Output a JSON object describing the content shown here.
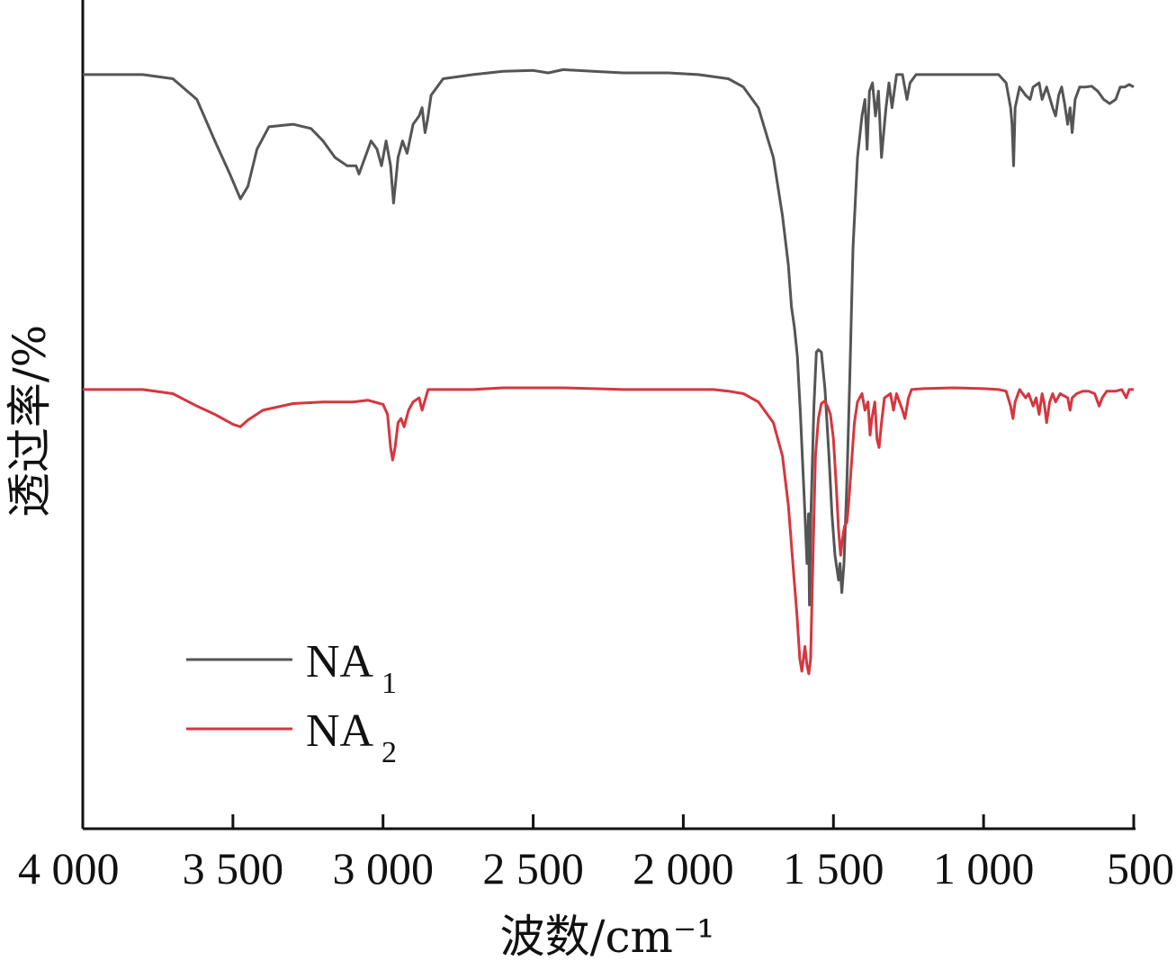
{
  "chart_data": {
    "type": "line",
    "xlabel": "波数/cm⁻¹",
    "ylabel": "透过率/%",
    "xlim": [
      4000,
      500
    ],
    "x_reversed": true,
    "xticks": [
      4000,
      3500,
      3000,
      2500,
      2000,
      1500,
      1000,
      500
    ],
    "xtick_labels": [
      "4 000",
      "3 500",
      "3 000",
      "2 500",
      "2 000",
      "1 500",
      "1 000",
      "500"
    ],
    "ylim": [
      0,
      100
    ],
    "yticks_shown": false,
    "grid": false,
    "legend_position": "bottom-left",
    "series": [
      {
        "name": "NA",
        "name_subscript": "1",
        "color": "#555555",
        "points": [
          [
            4000,
            91
          ],
          [
            3800,
            91
          ],
          [
            3700,
            90.5
          ],
          [
            3620,
            88
          ],
          [
            3560,
            83
          ],
          [
            3510,
            79
          ],
          [
            3475,
            76
          ],
          [
            3450,
            77.5
          ],
          [
            3420,
            82
          ],
          [
            3380,
            84.7
          ],
          [
            3300,
            85
          ],
          [
            3240,
            84.5
          ],
          [
            3200,
            83
          ],
          [
            3160,
            81
          ],
          [
            3120,
            80
          ],
          [
            3090,
            80
          ],
          [
            3080,
            79
          ],
          [
            3060,
            81
          ],
          [
            3040,
            83
          ],
          [
            3020,
            82
          ],
          [
            3005,
            80
          ],
          [
            2990,
            83
          ],
          [
            2975,
            80
          ],
          [
            2965,
            75.5
          ],
          [
            2958,
            78
          ],
          [
            2950,
            81
          ],
          [
            2935,
            83
          ],
          [
            2920,
            81.5
          ],
          [
            2900,
            85
          ],
          [
            2880,
            86
          ],
          [
            2870,
            87
          ],
          [
            2860,
            84
          ],
          [
            2852,
            85.5
          ],
          [
            2840,
            88.5
          ],
          [
            2800,
            90.5
          ],
          [
            2700,
            91
          ],
          [
            2600,
            91.4
          ],
          [
            2500,
            91.5
          ],
          [
            2450,
            91.2
          ],
          [
            2400,
            91.6
          ],
          [
            2300,
            91.4
          ],
          [
            2200,
            91.2
          ],
          [
            2050,
            91.2
          ],
          [
            1950,
            91
          ],
          [
            1850,
            90.5
          ],
          [
            1800,
            89.5
          ],
          [
            1750,
            87
          ],
          [
            1700,
            81
          ],
          [
            1670,
            74
          ],
          [
            1650,
            68
          ],
          [
            1640,
            63
          ],
          [
            1630,
            60.5
          ],
          [
            1620,
            57
          ],
          [
            1610,
            50
          ],
          [
            1595,
            38
          ],
          [
            1588,
            32
          ],
          [
            1583,
            38
          ],
          [
            1580,
            27
          ],
          [
            1575,
            38
          ],
          [
            1565,
            51
          ],
          [
            1557,
            57.5
          ],
          [
            1550,
            57.8
          ],
          [
            1540,
            57.5
          ],
          [
            1528,
            53
          ],
          [
            1515,
            45
          ],
          [
            1505,
            38
          ],
          [
            1495,
            33
          ],
          [
            1483,
            30
          ],
          [
            1478,
            32
          ],
          [
            1472,
            28.5
          ],
          [
            1465,
            32
          ],
          [
            1455,
            42
          ],
          [
            1445,
            55
          ],
          [
            1435,
            70
          ],
          [
            1420,
            81
          ],
          [
            1405,
            86
          ],
          [
            1395,
            88
          ],
          [
            1388,
            82
          ],
          [
            1380,
            89
          ],
          [
            1370,
            90
          ],
          [
            1360,
            86
          ],
          [
            1350,
            89
          ],
          [
            1340,
            81
          ],
          [
            1335,
            83
          ],
          [
            1325,
            87
          ],
          [
            1315,
            90
          ],
          [
            1305,
            87
          ],
          [
            1290,
            91
          ],
          [
            1270,
            91
          ],
          [
            1255,
            88
          ],
          [
            1245,
            90
          ],
          [
            1225,
            91
          ],
          [
            1200,
            91
          ],
          [
            1150,
            91
          ],
          [
            1100,
            91
          ],
          [
            1060,
            91
          ],
          [
            1000,
            91
          ],
          [
            950,
            91
          ],
          [
            925,
            90
          ],
          [
            910,
            87
          ],
          [
            905,
            85
          ],
          [
            900,
            80
          ],
          [
            895,
            87
          ],
          [
            880,
            89.5
          ],
          [
            860,
            88.5
          ],
          [
            845,
            88
          ],
          [
            835,
            89.5
          ],
          [
            815,
            90
          ],
          [
            805,
            88
          ],
          [
            790,
            89.5
          ],
          [
            770,
            87
          ],
          [
            760,
            86
          ],
          [
            750,
            88.5
          ],
          [
            740,
            89.5
          ],
          [
            730,
            87.5
          ],
          [
            720,
            85
          ],
          [
            712,
            87
          ],
          [
            705,
            84
          ],
          [
            695,
            88
          ],
          [
            680,
            89.5
          ],
          [
            660,
            89.5
          ],
          [
            640,
            89.6
          ],
          [
            620,
            89
          ],
          [
            600,
            88
          ],
          [
            580,
            87.5
          ],
          [
            560,
            88
          ],
          [
            545,
            89.5
          ],
          [
            530,
            89.5
          ],
          [
            515,
            89.8
          ],
          [
            500,
            89.5
          ]
        ]
      },
      {
        "name": "NA",
        "name_subscript": "2",
        "color": "#d6363f",
        "points": [
          [
            4000,
            53
          ],
          [
            3800,
            53
          ],
          [
            3700,
            52.5
          ],
          [
            3620,
            51
          ],
          [
            3560,
            50
          ],
          [
            3500,
            48.8
          ],
          [
            3475,
            48.5
          ],
          [
            3450,
            49.3
          ],
          [
            3400,
            50.5
          ],
          [
            3300,
            51.3
          ],
          [
            3200,
            51.5
          ],
          [
            3100,
            51.5
          ],
          [
            3050,
            51.7
          ],
          [
            3000,
            51.2
          ],
          [
            2985,
            50
          ],
          [
            2975,
            46
          ],
          [
            2968,
            44.5
          ],
          [
            2960,
            46
          ],
          [
            2950,
            49
          ],
          [
            2940,
            49.5
          ],
          [
            2930,
            48.5
          ],
          [
            2915,
            50.5
          ],
          [
            2900,
            51.5
          ],
          [
            2880,
            52
          ],
          [
            2870,
            50.5
          ],
          [
            2862,
            51.5
          ],
          [
            2850,
            53
          ],
          [
            2800,
            53
          ],
          [
            2700,
            53
          ],
          [
            2600,
            53.2
          ],
          [
            2500,
            53.2
          ],
          [
            2400,
            53.2
          ],
          [
            2300,
            53.1
          ],
          [
            2200,
            53
          ],
          [
            2100,
            53
          ],
          [
            2000,
            53
          ],
          [
            1900,
            53
          ],
          [
            1850,
            52.8
          ],
          [
            1800,
            52.5
          ],
          [
            1750,
            51.5
          ],
          [
            1700,
            49
          ],
          [
            1670,
            45
          ],
          [
            1650,
            39
          ],
          [
            1635,
            32
          ],
          [
            1622,
            26
          ],
          [
            1612,
            20.5
          ],
          [
            1605,
            19
          ],
          [
            1595,
            22
          ],
          [
            1588,
            19.7
          ],
          [
            1582,
            18.7
          ],
          [
            1576,
            20.5
          ],
          [
            1568,
            33
          ],
          [
            1560,
            45
          ],
          [
            1550,
            49.5
          ],
          [
            1540,
            51.3
          ],
          [
            1530,
            51.6
          ],
          [
            1520,
            51
          ],
          [
            1510,
            50
          ],
          [
            1500,
            47
          ],
          [
            1490,
            41
          ],
          [
            1483,
            36
          ],
          [
            1476,
            33
          ],
          [
            1470,
            35
          ],
          [
            1463,
            36.5
          ],
          [
            1455,
            37
          ],
          [
            1450,
            39
          ],
          [
            1440,
            44
          ],
          [
            1430,
            49
          ],
          [
            1420,
            51.5
          ],
          [
            1405,
            52.5
          ],
          [
            1395,
            50.5
          ],
          [
            1385,
            51.5
          ],
          [
            1378,
            47.5
          ],
          [
            1372,
            49.5
          ],
          [
            1362,
            51.5
          ],
          [
            1355,
            47
          ],
          [
            1348,
            46
          ],
          [
            1340,
            49
          ],
          [
            1330,
            52
          ],
          [
            1310,
            52.5
          ],
          [
            1300,
            50.5
          ],
          [
            1290,
            52.5
          ],
          [
            1270,
            50.5
          ],
          [
            1262,
            49.5
          ],
          [
            1250,
            52
          ],
          [
            1240,
            53
          ],
          [
            1200,
            53.1
          ],
          [
            1100,
            53.2
          ],
          [
            1000,
            53.1
          ],
          [
            950,
            53
          ],
          [
            925,
            52.8
          ],
          [
            910,
            51
          ],
          [
            902,
            49.5
          ],
          [
            895,
            51.5
          ],
          [
            880,
            53
          ],
          [
            860,
            52
          ],
          [
            850,
            52.5
          ],
          [
            835,
            51
          ],
          [
            825,
            52
          ],
          [
            815,
            50
          ],
          [
            805,
            52.5
          ],
          [
            798,
            51.3
          ],
          [
            790,
            49
          ],
          [
            780,
            51.5
          ],
          [
            770,
            52.5
          ],
          [
            760,
            51.5
          ],
          [
            745,
            52.5
          ],
          [
            720,
            52
          ],
          [
            712,
            50.5
          ],
          [
            705,
            52
          ],
          [
            690,
            52.5
          ],
          [
            670,
            52.8
          ],
          [
            650,
            52.8
          ],
          [
            630,
            52.5
          ],
          [
            615,
            51
          ],
          [
            605,
            52
          ],
          [
            590,
            52.8
          ],
          [
            560,
            52.8
          ],
          [
            540,
            53
          ],
          [
            525,
            52
          ],
          [
            515,
            53
          ],
          [
            500,
            53
          ]
        ]
      }
    ]
  }
}
